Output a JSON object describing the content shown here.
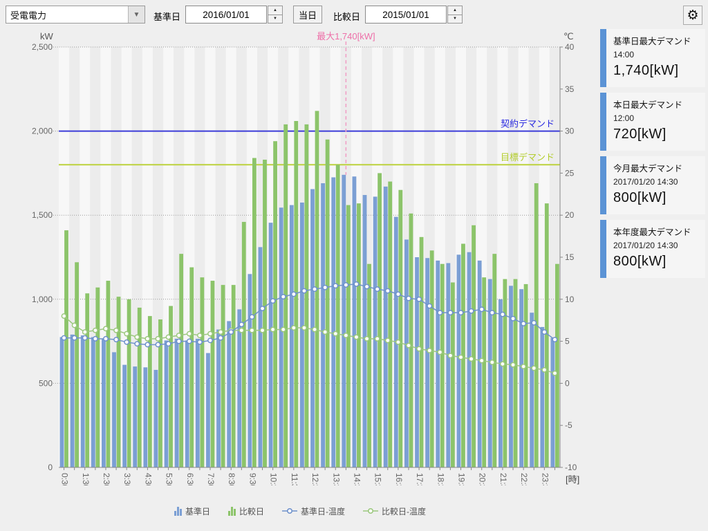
{
  "toolbar": {
    "metric_select": {
      "value": "受電電力"
    },
    "base_date_label": "基準日",
    "base_date_value": "2016/01/01",
    "today_button": "当日",
    "compare_date_label": "比較日",
    "compare_date_value": "2015/01/01"
  },
  "summary_cards": [
    {
      "title": "基準日最大デマンド",
      "time": "14:00",
      "value": "1,740[kW]"
    },
    {
      "title": "本日最大デマンド",
      "time": "12:00",
      "value": "720[kW]"
    },
    {
      "title": "今月最大デマンド",
      "time": "2017/01/20 14:30",
      "value": "800[kW]"
    },
    {
      "title": "本年度最大デマンド",
      "time": "2017/01/20 14:30",
      "value": "800[kW]"
    }
  ],
  "chart_data": {
    "type": "bar",
    "title": "",
    "x_unit_label": "[時]",
    "left_axis": {
      "unit": "kW",
      "min": 0,
      "max": 2500,
      "tick_step": 500,
      "tick_labels": [
        "2,500",
        "2,000",
        "1,500",
        "1,000",
        "500",
        "0"
      ]
    },
    "right_axis": {
      "unit": "℃",
      "min": -10,
      "max": 40,
      "tick_step": 5,
      "tick_labels": [
        "40",
        "35",
        "30",
        "25",
        "20",
        "15",
        "10",
        "5",
        "0",
        "-5",
        "-10"
      ]
    },
    "categories": [
      "0:30",
      "1:00",
      "1:30",
      "2:00",
      "2:30",
      "3:00",
      "3:30",
      "4:00",
      "4:30",
      "5:00",
      "5:30",
      "6:00",
      "6:30",
      "7:00",
      "7:30",
      "8:00",
      "8:30",
      "9:00",
      "9:30",
      "10:00",
      "10:30",
      "11:00",
      "11:30",
      "12:00",
      "12:30",
      "13:00",
      "13:30",
      "14:00",
      "14:30",
      "15:00",
      "15:30",
      "16:00",
      "16:30",
      "17:00",
      "17:30",
      "18:00",
      "18:30",
      "19:00",
      "19:30",
      "20:00",
      "20:30",
      "21:00",
      "21:30",
      "22:00",
      "22:30",
      "23:00",
      "23:30",
      "24:00"
    ],
    "x_tick_labels": [
      "0:30",
      "1:30",
      "2:30",
      "3:30",
      "4:30",
      "5:30",
      "6:30",
      "7:30",
      "8:30",
      "9:30",
      "10:30",
      "11:30",
      "12:30",
      "13:30",
      "14:30",
      "15:30",
      "16:30",
      "17:30",
      "18:30",
      "19:30",
      "20:30",
      "21:30",
      "22:30",
      "23:30"
    ],
    "series": [
      {
        "name": "基準日",
        "type": "bar",
        "unit": "kW",
        "color": "#7b9fd4",
        "values": [
          775,
          790,
          785,
          775,
          765,
          685,
          610,
          600,
          595,
          580,
          755,
          765,
          755,
          765,
          680,
          820,
          870,
          940,
          1150,
          1310,
          1455,
          1545,
          1560,
          1575,
          1655,
          1690,
          1725,
          1740,
          1730,
          1620,
          1610,
          1670,
          1490,
          1355,
          1250,
          1245,
          1230,
          1215,
          1265,
          1280,
          1230,
          1120,
          1000,
          1080,
          1060,
          920,
          835,
          770
        ]
      },
      {
        "name": "比較日",
        "type": "bar",
        "unit": "kW",
        "color": "#8cc46a",
        "values": [
          1410,
          1220,
          1035,
          1070,
          1110,
          1015,
          1000,
          950,
          900,
          880,
          960,
          1270,
          1190,
          1130,
          1110,
          1085,
          1085,
          1460,
          1840,
          1830,
          1940,
          2040,
          2060,
          2040,
          2120,
          1950,
          1800,
          1560,
          1570,
          1210,
          1750,
          1700,
          1650,
          1510,
          1370,
          1290,
          1210,
          1100,
          1330,
          1440,
          1130,
          1270,
          1120,
          1120,
          1090,
          1690,
          1570,
          1210
        ]
      },
      {
        "name": "基準日-温度",
        "type": "line",
        "unit": "℃",
        "color": "#6f92cc",
        "values": [
          5.4,
          5.4,
          5.4,
          5.3,
          5.3,
          5.2,
          4.9,
          4.7,
          4.6,
          4.6,
          4.7,
          5.0,
          5.0,
          4.9,
          5.1,
          5.4,
          6.1,
          7.0,
          7.9,
          8.9,
          9.8,
          10.3,
          10.6,
          11.0,
          11.2,
          11.4,
          11.6,
          11.7,
          11.8,
          11.5,
          11.2,
          11.0,
          10.6,
          10.1,
          10.0,
          9.2,
          8.4,
          8.4,
          8.4,
          8.6,
          8.8,
          8.4,
          8.2,
          7.7,
          7.1,
          7.2,
          6.1,
          5.2
        ]
      },
      {
        "name": "比較日-温度",
        "type": "line",
        "unit": "℃",
        "color": "#9cc87e",
        "values": [
          8.0,
          6.9,
          6.1,
          6.3,
          6.5,
          6.3,
          5.9,
          5.5,
          5.3,
          5.3,
          5.5,
          5.7,
          5.9,
          5.7,
          5.9,
          6.1,
          6.3,
          6.3,
          6.3,
          6.3,
          6.4,
          6.4,
          6.6,
          6.6,
          6.4,
          6.1,
          5.9,
          5.7,
          5.5,
          5.3,
          5.3,
          5.1,
          4.9,
          4.5,
          4.1,
          3.9,
          3.7,
          3.3,
          3.1,
          2.9,
          2.7,
          2.5,
          2.3,
          2.2,
          2.0,
          1.8,
          1.6,
          1.2
        ]
      }
    ],
    "reference_lines": [
      {
        "label": "契約デマンド",
        "value": 2000,
        "color": "#3b3bd8",
        "label_color": "#2929e0"
      },
      {
        "label": "目標デマンド",
        "value": 1800,
        "color": "#bcd23c",
        "label_color": "#b3cd2d"
      }
    ],
    "annotation": {
      "label": "最大1,740[kW]",
      "time": "14:00",
      "value": 1740,
      "color": "#ee6fa8",
      "line_color": "#f2a0c6"
    },
    "legend": [
      "基準日",
      "比較日",
      "基準日-温度",
      "比較日-温度"
    ],
    "grid": "horizontal-dotted",
    "background_stripes": true,
    "legend_position": "bottom"
  }
}
